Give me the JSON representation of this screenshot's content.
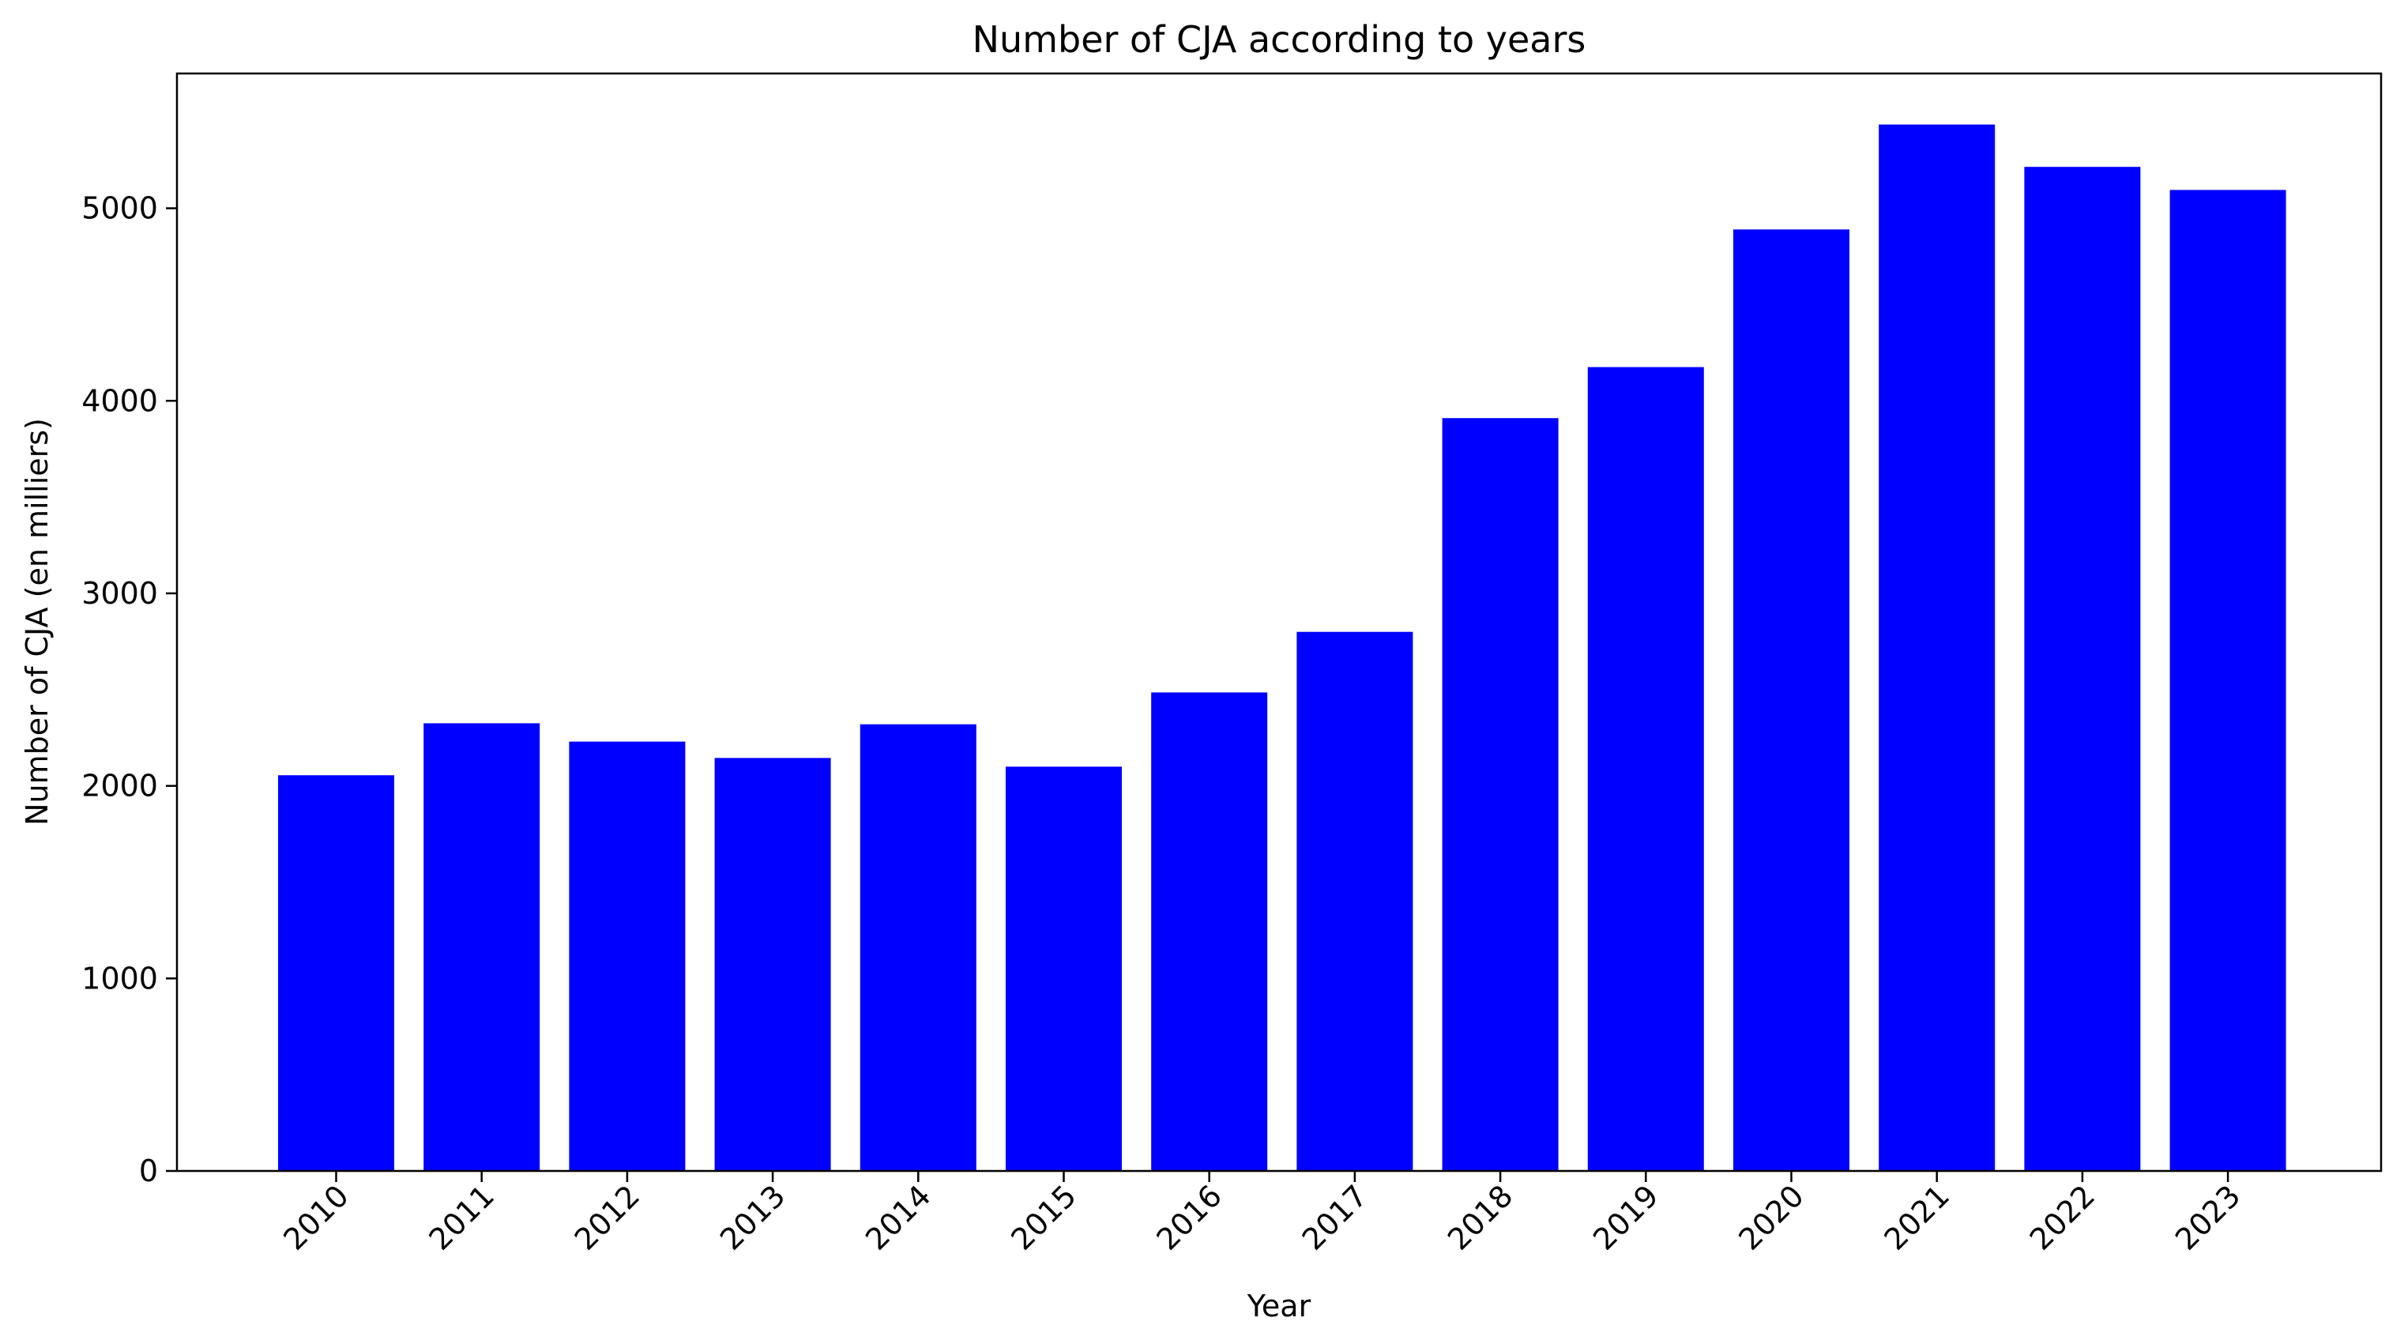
{
  "chart_data": {
    "type": "bar",
    "title": "Number of CJA according to years",
    "xlabel": "Year",
    "ylabel": "Number of CJA (en milliers)",
    "categories": [
      "2010",
      "2011",
      "2012",
      "2013",
      "2014",
      "2015",
      "2016",
      "2017",
      "2018",
      "2019",
      "2020",
      "2021",
      "2022",
      "2023"
    ],
    "values": [
      2055,
      2325,
      2230,
      2145,
      2320,
      2100,
      2485,
      2800,
      3910,
      4175,
      4890,
      5435,
      5215,
      5095
    ],
    "ylim": [
      0,
      5700
    ],
    "yticks": [
      0,
      1000,
      2000,
      3000,
      4000,
      5000
    ],
    "bar_color": "#0000ff",
    "grid": false,
    "legend": "none"
  }
}
